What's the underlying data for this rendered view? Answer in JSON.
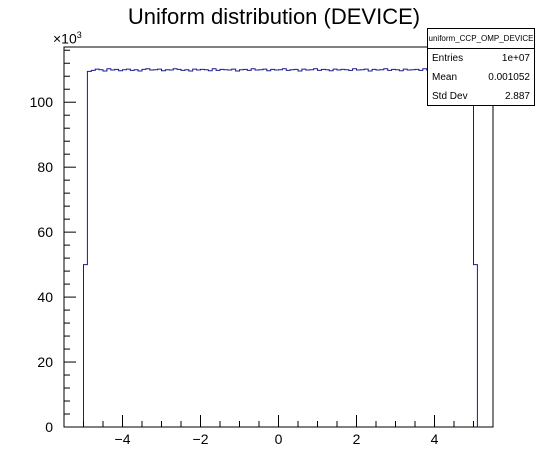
{
  "title": "Uniform distribution (DEVICE)",
  "y_multiplier": {
    "base": "×10",
    "exp": "3"
  },
  "statbox": {
    "name": "uniform_CCP_OMP_DEVICE",
    "rows": [
      {
        "label": "Entries",
        "value": "1e+07"
      },
      {
        "label": "Mean",
        "value": "0.001052"
      },
      {
        "label": "Std Dev",
        "value": "2.887"
      }
    ]
  },
  "colors": {
    "histogram": "#1a1a8c",
    "axis": "#000000"
  },
  "chart_data": {
    "type": "bar",
    "style": "step-histogram",
    "xlim": [
      -5.5,
      5.5
    ],
    "ylim": [
      0,
      117000
    ],
    "x_ticks": [
      -4,
      -2,
      0,
      2,
      4
    ],
    "x_tick_labels": [
      "−4",
      "−2",
      "0",
      "2",
      "4"
    ],
    "y_ticks": [
      0,
      20000,
      40000,
      60000,
      80000,
      100000
    ],
    "y_tick_labels": [
      "0",
      "20",
      "40",
      "60",
      "80",
      "100"
    ],
    "bin_width": 0.1,
    "bins_low_edge": -5.0,
    "values": [
      50000,
      109500,
      109800,
      110200,
      110000,
      109600,
      110300,
      109900,
      110100,
      109700,
      110000,
      110200,
      109800,
      110000,
      109600,
      110100,
      110300,
      109900,
      110000,
      110200,
      109700,
      110000,
      109900,
      110300,
      110100,
      109800,
      110000,
      109600,
      110200,
      109900,
      110100,
      110000,
      109700,
      110300,
      109800,
      110100,
      110000,
      109900,
      110200,
      109600,
      110000,
      110100,
      109800,
      110300,
      109900,
      110000,
      110200,
      109700,
      110100,
      109900,
      110000,
      110300,
      109800,
      110000,
      110100,
      109600,
      110200,
      109900,
      110000,
      110300,
      109800,
      110100,
      110000,
      109700,
      110200,
      109900,
      110100,
      110000,
      109800,
      110300,
      109900,
      110000,
      110200,
      109600,
      110100,
      109900,
      110000,
      110300,
      109800,
      110100,
      110000,
      109700,
      110200,
      109900,
      110000,
      110100,
      109800,
      110300,
      109900,
      110000,
      110200,
      109700,
      110100,
      109900,
      110000,
      110300,
      109800,
      110100,
      110000,
      109600,
      50000
    ],
    "legend": "top-right",
    "grid": false
  }
}
